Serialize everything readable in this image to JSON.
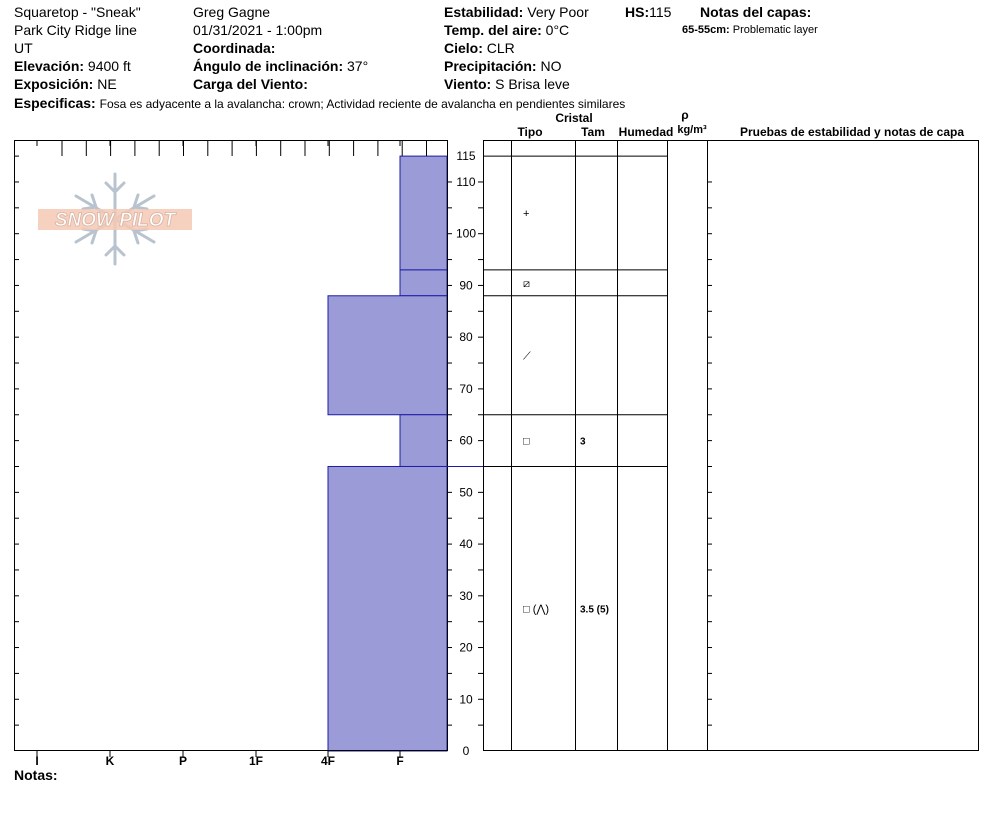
{
  "header": {
    "location": "Squaretop - \"Sneak\"",
    "area": "Park City Ridge line",
    "state": "UT",
    "elevation_label": "Elevación:",
    "elevation_value": "9400 ft",
    "aspect_label": "Exposición:",
    "aspect_value": "NE",
    "observer": "Greg Gagne",
    "datetime": "01/31/2021 - 1:00pm",
    "coord_label": "Coordinada:",
    "slope_label": "Ángulo de inclinación:",
    "slope_value": "37°",
    "wind_load_label": "Carga del Viento:",
    "stability_label": "Estabilidad:",
    "stability_value": "Very Poor",
    "hs_label": "HS:",
    "hs_value": "115",
    "air_temp_label": "Temp. del aire:",
    "air_temp_value": "0°C",
    "sky_label": "Cielo:",
    "sky_value": "CLR",
    "precip_label": "Precipitación:",
    "precip_value": "NO",
    "wind_label": "Viento:",
    "wind_value": "S  Brisa leve",
    "layer_notes_label": "Notas del capas:",
    "layer_note_depth": "65-55cm:",
    "layer_note_text": "Problematic layer",
    "specifics_label": "Especificas:",
    "specifics_text": "Fosa es adyacente a la avalancha: crown;  Actividad reciente de avalancha en pendientes similares"
  },
  "logo": {
    "text": "SNOW PILOT"
  },
  "table_headers": {
    "crystal": "Cristal",
    "type": "Tipo",
    "size": "Tam",
    "moisture": "Humedad",
    "rho": "ρ",
    "density_unit": "kg/m³",
    "tests": "Pruebas de estabilidad y notas de capa"
  },
  "notes_label": "Notas:",
  "colors": {
    "hardness_fill": "#9b9bd8",
    "hardness_stroke": "#1c1ca6"
  },
  "chart_data": {
    "type": "bar",
    "orientation": "horizontal-step",
    "ylabel": "",
    "ylim": [
      0,
      115
    ],
    "y_ticks": [
      0,
      10,
      20,
      30,
      40,
      50,
      60,
      70,
      80,
      90,
      100,
      110,
      115
    ],
    "hardness_scale": [
      "I",
      "K",
      "P",
      "1F",
      "4F",
      "F"
    ],
    "layers": [
      {
        "top": 115,
        "bottom": 93,
        "hardness": "F",
        "crystal_type": "+",
        "size": ""
      },
      {
        "top": 93,
        "bottom": 88,
        "hardness": "F",
        "crystal_type": "⧄",
        "size": ""
      },
      {
        "top": 88,
        "bottom": 65,
        "hardness": "4F",
        "crystal_type": "⟋",
        "size": ""
      },
      {
        "top": 65,
        "bottom": 55,
        "hardness": "F",
        "crystal_type": "□",
        "size": "3"
      },
      {
        "top": 55,
        "bottom": 0,
        "hardness": "4F",
        "crystal_type": "□ (⋀)",
        "size": "3.5 (5)"
      }
    ]
  }
}
